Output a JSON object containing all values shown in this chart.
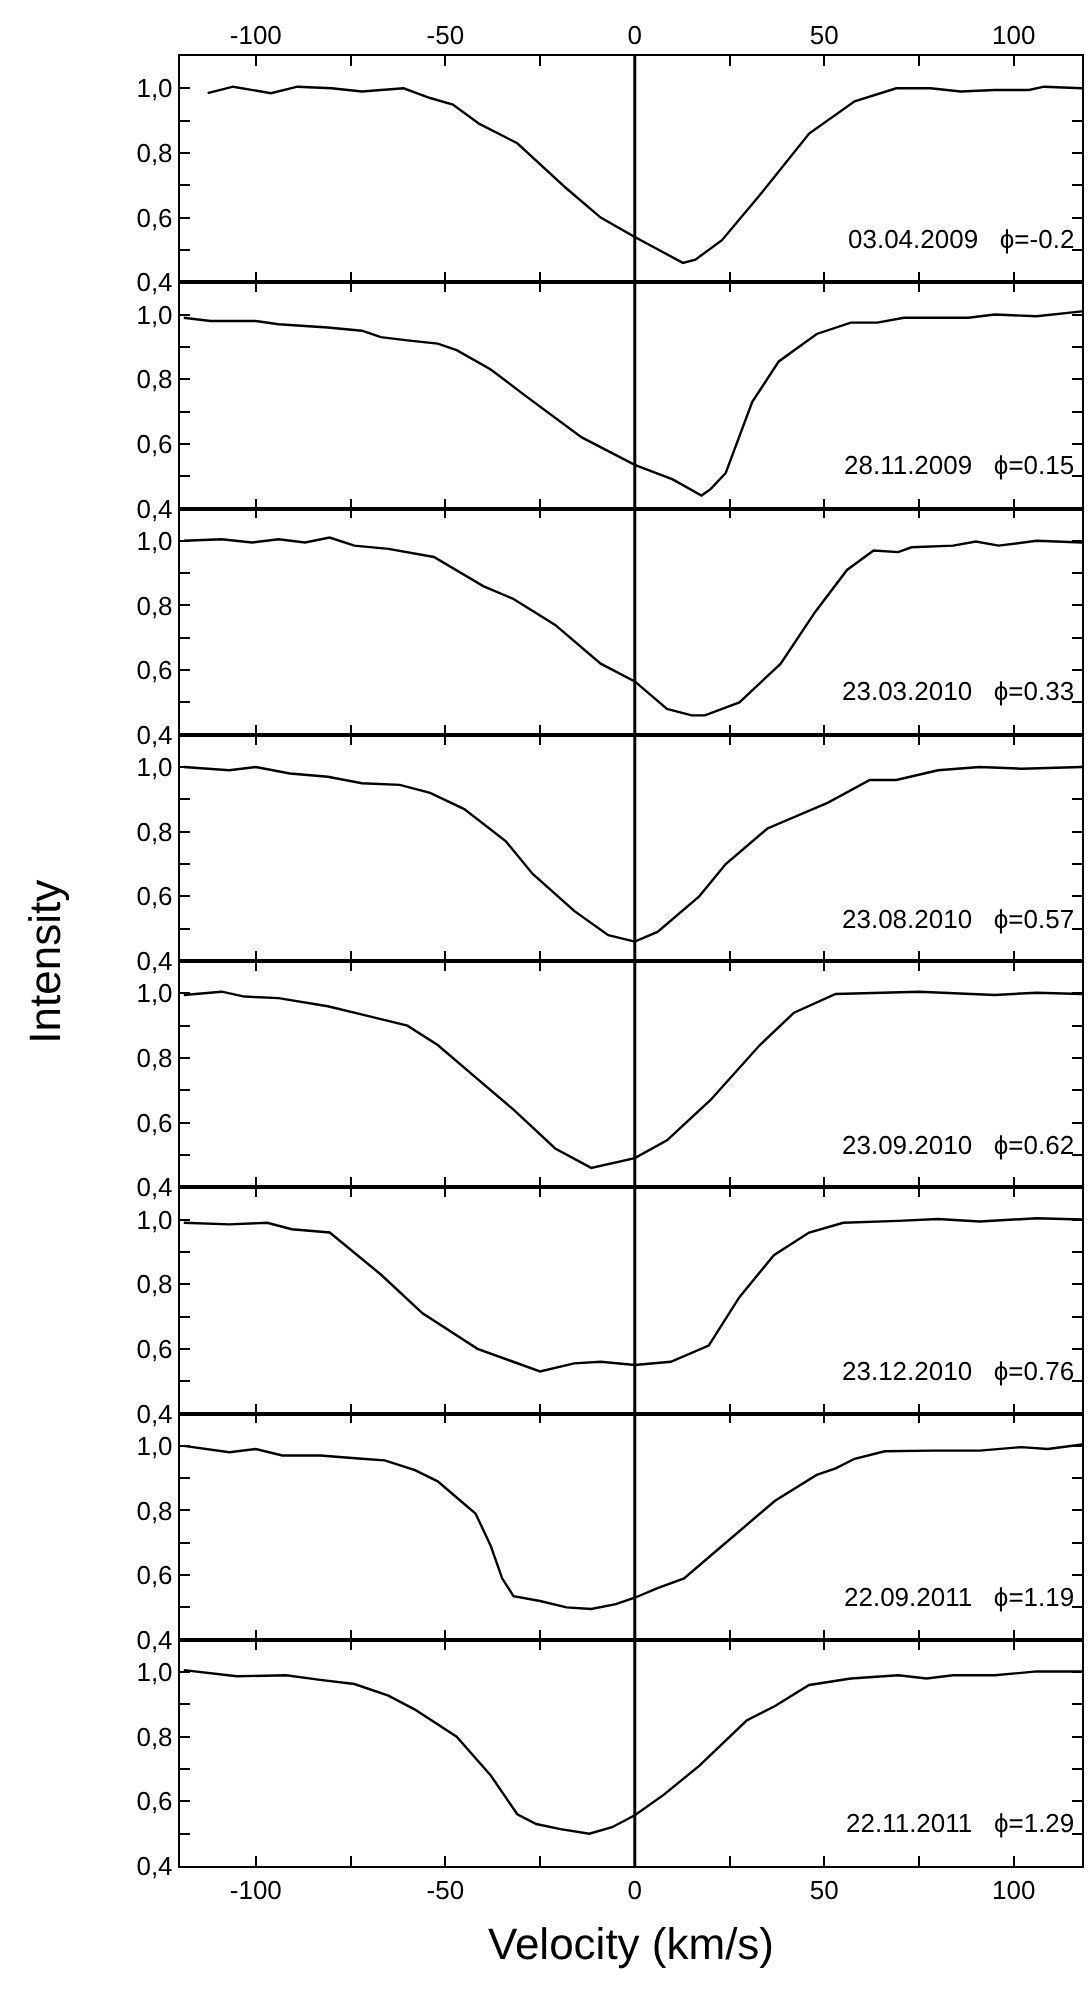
{
  "chart_data": [
    {
      "type": "line",
      "x": [
        -112.7,
        -106,
        -96,
        -89,
        -80,
        -72,
        -61,
        -54,
        -48,
        -41,
        -31,
        -18,
        -9,
        0,
        12.7,
        16,
        23,
        33,
        46,
        58,
        69,
        78,
        86,
        95,
        104,
        108,
        118
      ],
      "values": [
        0.985,
        1.005,
        0.985,
        1.005,
        1.0,
        0.99,
        1.0,
        0.97,
        0.95,
        0.89,
        0.83,
        0.69,
        0.6,
        0.54,
        0.46,
        0.47,
        0.53,
        0.67,
        0.86,
        0.96,
        1.0,
        1.0,
        0.99,
        0.995,
        0.995,
        1.005,
        1.0
      ],
      "color": "#000000",
      "ylim": [
        0.4,
        1.1
      ],
      "yticks": [
        {
          "value": 0.4,
          "label": "0,4"
        },
        {
          "value": 0.5,
          "label": null
        },
        {
          "value": 0.6,
          "label": "0,6"
        },
        {
          "value": 0.7,
          "label": null
        },
        {
          "value": 0.8,
          "label": "0,8"
        },
        {
          "value": 0.9,
          "label": null
        },
        {
          "value": 1.0,
          "label": "1,0"
        }
      ],
      "xlim": [
        -120,
        118
      ],
      "xticks": [
        -100,
        {
          "value": -75,
          "label": null
        },
        -50,
        {
          "value": -25,
          "label": null
        },
        0,
        {
          "value": 25,
          "label": null
        },
        50,
        {
          "value": 75,
          "label": null
        },
        100
      ],
      "x2lim": [
        -120,
        118
      ],
      "x2ticks": [
        -100,
        {
          "value": -75,
          "label": null
        },
        -50,
        {
          "value": -25,
          "label": null
        },
        0,
        {
          "value": 25,
          "label": null
        },
        50,
        {
          "value": 75,
          "label": null
        },
        100
      ],
      "tick_labels": "y",
      "annotations": [
        "03.04.2009   ϕ=-0.2"
      ],
      "ref_lines": [
        {
          "axis": "x",
          "value": 0
        }
      ]
    },
    {
      "type": "line",
      "x": [
        -119,
        -112,
        -100,
        -94,
        -81,
        -72,
        -67,
        -60,
        -52,
        -47,
        -38,
        -29,
        -14,
        0,
        10,
        17.6,
        20,
        24,
        31,
        38,
        48,
        57,
        64,
        71,
        88,
        95,
        106,
        118
      ],
      "values": [
        0.99,
        0.98,
        0.98,
        0.97,
        0.96,
        0.95,
        0.93,
        0.92,
        0.91,
        0.89,
        0.83,
        0.75,
        0.62,
        0.535,
        0.49,
        0.44,
        0.46,
        0.51,
        0.73,
        0.855,
        0.94,
        0.975,
        0.975,
        0.99,
        0.99,
        1.0,
        0.995,
        1.01
      ],
      "color": "#000000",
      "ylim": [
        0.4,
        1.1
      ],
      "yticks": [
        {
          "value": 0.4,
          "label": "0,4"
        },
        {
          "value": 0.5,
          "label": null
        },
        {
          "value": 0.6,
          "label": "0,6"
        },
        {
          "value": 0.7,
          "label": null
        },
        {
          "value": 0.8,
          "label": "0,8"
        },
        {
          "value": 0.9,
          "label": null
        },
        {
          "value": 1.0,
          "label": "1,0"
        }
      ],
      "xlim": [
        -120,
        118
      ],
      "xticks": [
        -100,
        {
          "value": -75,
          "label": null
        },
        -50,
        {
          "value": -25,
          "label": null
        },
        0,
        {
          "value": 25,
          "label": null
        },
        50,
        {
          "value": 75,
          "label": null
        },
        100
      ],
      "tick_labels": "y",
      "annotations": [
        "28.11.2009   ϕ=0.15"
      ],
      "ref_lines": [
        {
          "axis": "x",
          "value": 0
        }
      ]
    },
    {
      "type": "line",
      "x": [
        -119,
        -109,
        -101,
        -94,
        -87,
        -80.5,
        -74,
        -65,
        -53,
        -40,
        -32,
        -21,
        -9,
        0,
        8.5,
        15,
        18.5,
        27.6,
        38.5,
        47.6,
        56,
        63,
        69.5,
        73,
        84,
        90,
        96,
        106,
        118
      ],
      "values": [
        1.0,
        1.005,
        0.995,
        1.005,
        0.995,
        1.01,
        0.985,
        0.975,
        0.95,
        0.86,
        0.82,
        0.74,
        0.62,
        0.565,
        0.48,
        0.46,
        0.46,
        0.5,
        0.62,
        0.78,
        0.91,
        0.97,
        0.965,
        0.98,
        0.985,
        0.998,
        0.985,
        1.0,
        0.995
      ],
      "color": "#000000",
      "ylim": [
        0.4,
        1.1
      ],
      "yticks": [
        {
          "value": 0.4,
          "label": "0,4"
        },
        {
          "value": 0.5,
          "label": null
        },
        {
          "value": 0.6,
          "label": "0,6"
        },
        {
          "value": 0.7,
          "label": null
        },
        {
          "value": 0.8,
          "label": "0,8"
        },
        {
          "value": 0.9,
          "label": null
        },
        {
          "value": 1.0,
          "label": "1,0"
        }
      ],
      "xlim": [
        -120,
        118
      ],
      "xticks": [
        -100,
        {
          "value": -75,
          "label": null
        },
        -50,
        {
          "value": -25,
          "label": null
        },
        0,
        {
          "value": 25,
          "label": null
        },
        50,
        {
          "value": 75,
          "label": null
        },
        100
      ],
      "tick_labels": "y",
      "annotations": [
        "23.03.2010   ϕ=0.33"
      ],
      "ref_lines": [
        {
          "axis": "x",
          "value": 0
        }
      ]
    },
    {
      "type": "line",
      "x": [
        -119,
        -107,
        -100,
        -91,
        -81,
        -72,
        -62,
        -54,
        -45,
        -34,
        -27,
        -16,
        -7,
        0,
        6,
        17,
        24,
        35,
        51,
        62,
        69,
        80,
        91,
        102,
        118
      ],
      "values": [
        1.0,
        0.99,
        1.0,
        0.98,
        0.97,
        0.95,
        0.945,
        0.92,
        0.87,
        0.77,
        0.67,
        0.555,
        0.48,
        0.46,
        0.49,
        0.6,
        0.7,
        0.81,
        0.89,
        0.96,
        0.96,
        0.99,
        1.0,
        0.995,
        1.0
      ],
      "color": "#000000",
      "ylim": [
        0.4,
        1.1
      ],
      "yticks": [
        {
          "value": 0.4,
          "label": "0,4"
        },
        {
          "value": 0.5,
          "label": null
        },
        {
          "value": 0.6,
          "label": "0,6"
        },
        {
          "value": 0.7,
          "label": null
        },
        {
          "value": 0.8,
          "label": "0,8"
        },
        {
          "value": 0.9,
          "label": null
        },
        {
          "value": 1.0,
          "label": "1,0"
        }
      ],
      "xlim": [
        -120,
        118
      ],
      "xticks": [
        -100,
        {
          "value": -75,
          "label": null
        },
        -50,
        {
          "value": -25,
          "label": null
        },
        0,
        {
          "value": 25,
          "label": null
        },
        50,
        {
          "value": 75,
          "label": null
        },
        100
      ],
      "tick_labels": "y",
      "ylabel": "Intensity",
      "annotations": [
        "23.08.2010   ϕ=0.57"
      ],
      "ref_lines": [
        {
          "axis": "x",
          "value": 0
        }
      ]
    },
    {
      "type": "line",
      "x": [
        -119,
        -109,
        -103,
        -94,
        -81,
        -70.5,
        -60,
        -52,
        -41,
        -32,
        -21,
        -11.5,
        0,
        8.5,
        20,
        33,
        42,
        53,
        75,
        95,
        106,
        118
      ],
      "values": [
        0.995,
        1.005,
        0.99,
        0.985,
        0.96,
        0.93,
        0.9,
        0.84,
        0.73,
        0.64,
        0.52,
        0.46,
        0.49,
        0.545,
        0.67,
        0.84,
        0.94,
        0.998,
        1.005,
        0.995,
        1.002,
        0.998
      ],
      "color": "#000000",
      "ylim": [
        0.4,
        1.1
      ],
      "yticks": [
        {
          "value": 0.4,
          "label": "0,4"
        },
        {
          "value": 0.5,
          "label": null
        },
        {
          "value": 0.6,
          "label": "0,6"
        },
        {
          "value": 0.7,
          "label": null
        },
        {
          "value": 0.8,
          "label": "0,8"
        },
        {
          "value": 0.9,
          "label": null
        },
        {
          "value": 1.0,
          "label": "1,0"
        }
      ],
      "xlim": [
        -120,
        118
      ],
      "xticks": [
        -100,
        {
          "value": -75,
          "label": null
        },
        -50,
        {
          "value": -25,
          "label": null
        },
        0,
        {
          "value": 25,
          "label": null
        },
        50,
        {
          "value": 75,
          "label": null
        },
        100
      ],
      "tick_labels": "y",
      "annotations": [
        "23.09.2010   ϕ=0.62"
      ],
      "ref_lines": [
        {
          "axis": "x",
          "value": 0
        }
      ]
    },
    {
      "type": "line",
      "x": [
        -119,
        -107,
        -97,
        -90.5,
        -80.5,
        -67,
        -56,
        -41.5,
        -25,
        -16,
        -9,
        0,
        9.5,
        19.5,
        27.6,
        36.7,
        46,
        55,
        69.5,
        80,
        91,
        106,
        118
      ],
      "values": [
        0.99,
        0.985,
        0.99,
        0.97,
        0.96,
        0.83,
        0.71,
        0.6,
        0.53,
        0.555,
        0.56,
        0.55,
        0.56,
        0.61,
        0.76,
        0.89,
        0.96,
        0.99,
        0.996,
        1.002,
        0.994,
        1.004,
        1.0
      ],
      "color": "#000000",
      "ylim": [
        0.4,
        1.1
      ],
      "yticks": [
        {
          "value": 0.4,
          "label": "0,4"
        },
        {
          "value": 0.5,
          "label": null
        },
        {
          "value": 0.6,
          "label": "0,6"
        },
        {
          "value": 0.7,
          "label": null
        },
        {
          "value": 0.8,
          "label": "0,8"
        },
        {
          "value": 0.9,
          "label": null
        },
        {
          "value": 1.0,
          "label": "1,0"
        }
      ],
      "xlim": [
        -120,
        118
      ],
      "xticks": [
        -100,
        {
          "value": -75,
          "label": null
        },
        -50,
        {
          "value": -25,
          "label": null
        },
        0,
        {
          "value": 25,
          "label": null
        },
        50,
        {
          "value": 75,
          "label": null
        },
        100
      ],
      "tick_labels": "y",
      "annotations": [
        "23.12.2010   ϕ=0.76"
      ],
      "ref_lines": [
        {
          "axis": "x",
          "value": 0
        }
      ]
    },
    {
      "type": "line",
      "x": [
        -119,
        -107,
        -100,
        -93,
        -83,
        -72,
        -66,
        -58,
        -52,
        -46,
        -42,
        -38,
        -35,
        -32,
        -25,
        -18,
        -11.5,
        -5,
        0,
        6,
        13,
        22,
        37,
        48,
        53,
        58,
        66,
        78.5,
        91,
        102,
        109,
        118
      ],
      "values": [
        1.0,
        0.98,
        0.99,
        0.97,
        0.97,
        0.96,
        0.955,
        0.925,
        0.89,
        0.83,
        0.79,
        0.69,
        0.59,
        0.535,
        0.52,
        0.5,
        0.495,
        0.51,
        0.53,
        0.56,
        0.59,
        0.68,
        0.83,
        0.91,
        0.93,
        0.96,
        0.983,
        0.985,
        0.985,
        0.996,
        0.99,
        1.004
      ],
      "color": "#000000",
      "ylim": [
        0.4,
        1.1
      ],
      "yticks": [
        {
          "value": 0.4,
          "label": "0,4"
        },
        {
          "value": 0.5,
          "label": null
        },
        {
          "value": 0.6,
          "label": "0,6"
        },
        {
          "value": 0.7,
          "label": null
        },
        {
          "value": 0.8,
          "label": "0,8"
        },
        {
          "value": 0.9,
          "label": null
        },
        {
          "value": 1.0,
          "label": "1,0"
        }
      ],
      "xlim": [
        -120,
        118
      ],
      "xticks": [
        -100,
        {
          "value": -75,
          "label": null
        },
        -50,
        {
          "value": -25,
          "label": null
        },
        0,
        {
          "value": 25,
          "label": null
        },
        50,
        {
          "value": 75,
          "label": null
        },
        100
      ],
      "tick_labels": "y",
      "annotations": [
        "22.09.2011   ϕ=1.19"
      ],
      "ref_lines": [
        {
          "axis": "x",
          "value": 0
        }
      ]
    },
    {
      "type": "line",
      "x": [
        -119,
        -105,
        -92,
        -83,
        -74,
        -65,
        -58,
        -47,
        -38,
        -31,
        -26,
        -19.6,
        -12,
        -6,
        0,
        7.6,
        17,
        29.5,
        37,
        46,
        57,
        69.5,
        77,
        84,
        95,
        106,
        118
      ],
      "values": [
        1.006,
        0.987,
        0.99,
        0.976,
        0.963,
        0.927,
        0.884,
        0.8,
        0.68,
        0.56,
        0.53,
        0.514,
        0.5,
        0.52,
        0.557,
        0.62,
        0.71,
        0.85,
        0.895,
        0.96,
        0.98,
        0.99,
        0.98,
        0.99,
        0.99,
        1.002,
        1.002
      ],
      "color": "#000000",
      "ylim": [
        0.4,
        1.1
      ],
      "yticks": [
        {
          "value": 0.4,
          "label": "0,4"
        },
        {
          "value": 0.5,
          "label": null
        },
        {
          "value": 0.6,
          "label": "0,6"
        },
        {
          "value": 0.7,
          "label": null
        },
        {
          "value": 0.8,
          "label": "0,8"
        },
        {
          "value": 0.9,
          "label": null
        },
        {
          "value": 1.0,
          "label": "1,0"
        }
      ],
      "xlim": [
        -120,
        118
      ],
      "xticks": [
        -100,
        {
          "value": -75,
          "label": null
        },
        -50,
        {
          "value": -25,
          "label": null
        },
        0,
        {
          "value": 25,
          "label": null
        },
        50,
        {
          "value": 75,
          "label": null
        },
        100
      ],
      "xlabel": "Velocity (km/s)",
      "annotations": [
        "22.11.2011   ϕ=1.29"
      ],
      "ref_lines": [
        {
          "axis": "x",
          "value": 0
        }
      ]
    }
  ]
}
